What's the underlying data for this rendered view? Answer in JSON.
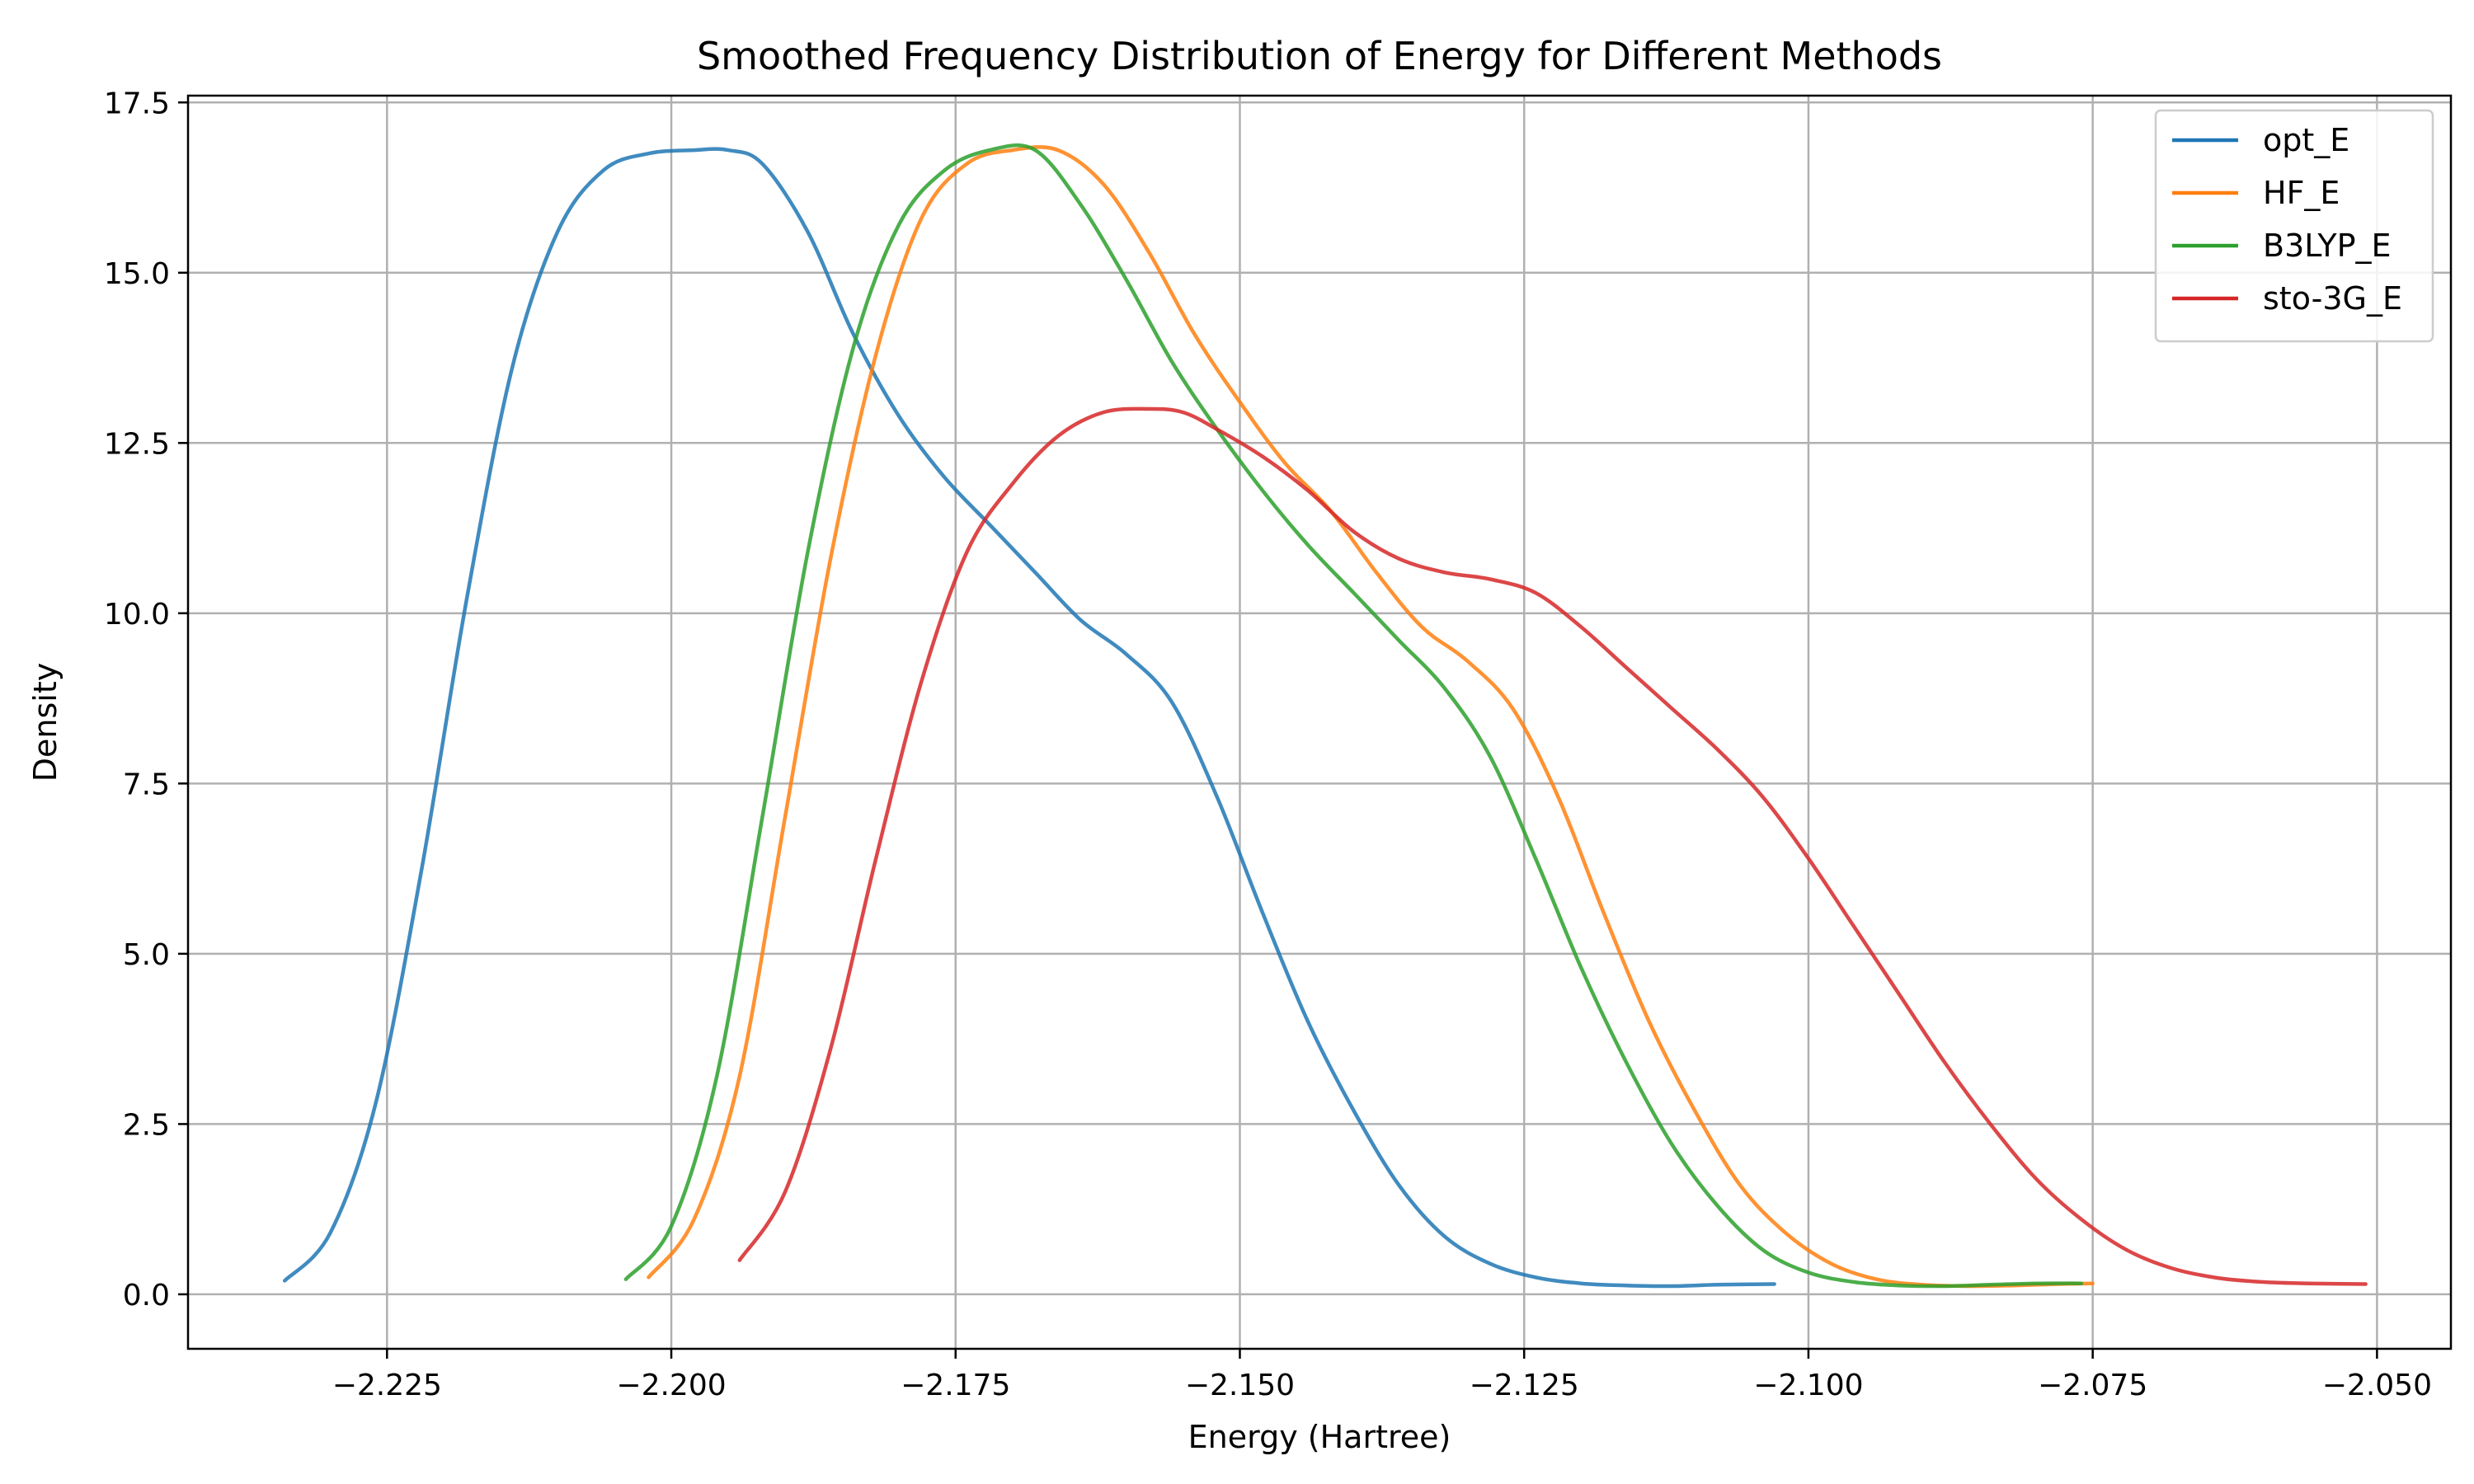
{
  "chart_data": {
    "type": "line",
    "title": "Smoothed Frequency Distribution of Energy for Different Methods",
    "xlabel": "Energy (Hartree)",
    "ylabel": "Density",
    "xlim": [
      -2.2425,
      -2.0435
    ],
    "ylim": [
      -0.8,
      17.6
    ],
    "xticks": [
      -2.225,
      -2.2,
      -2.175,
      -2.15,
      -2.125,
      -2.1,
      -2.075,
      -2.05
    ],
    "xtick_labels": [
      "−2.225",
      "−2.200",
      "−2.175",
      "−2.150",
      "−2.125",
      "−2.100",
      "−2.075",
      "−2.050"
    ],
    "yticks": [
      0,
      2.5,
      5,
      7.5,
      10,
      12.5,
      15,
      17.5
    ],
    "ytick_labels": [
      "0.0",
      "2.5",
      "5.0",
      "7.5",
      "10.0",
      "12.5",
      "15.0",
      "17.5"
    ],
    "grid": true,
    "legend_position": "top-right",
    "series": [
      {
        "name": "opt_E",
        "color": "#1f77b4",
        "x": [
          -2.234,
          -2.23,
          -2.226,
          -2.222,
          -2.218,
          -2.214,
          -2.21,
          -2.206,
          -2.202,
          -2.198,
          -2.195,
          -2.192,
          -2.188,
          -2.184,
          -2.18,
          -2.176,
          -2.172,
          -2.168,
          -2.164,
          -2.16,
          -2.156,
          -2.152,
          -2.148,
          -2.144,
          -2.14,
          -2.136,
          -2.132,
          -2.128,
          -2.124,
          -2.12,
          -2.116,
          -2.112,
          -2.108,
          -2.103
        ],
        "y": [
          0.2,
          0.9,
          2.8,
          6.2,
          10.2,
          13.6,
          15.6,
          16.5,
          16.75,
          16.8,
          16.8,
          16.6,
          15.6,
          14.1,
          12.9,
          12.0,
          11.3,
          10.6,
          9.9,
          9.4,
          8.7,
          7.3,
          5.6,
          4.0,
          2.7,
          1.6,
          0.85,
          0.45,
          0.25,
          0.16,
          0.13,
          0.12,
          0.14,
          0.15
        ]
      },
      {
        "name": "HF_E",
        "color": "#ff7f0e",
        "x": [
          -2.202,
          -2.198,
          -2.194,
          -2.19,
          -2.186,
          -2.182,
          -2.178,
          -2.174,
          -2.17,
          -2.166,
          -2.162,
          -2.158,
          -2.154,
          -2.15,
          -2.146,
          -2.142,
          -2.138,
          -2.134,
          -2.13,
          -2.126,
          -2.122,
          -2.118,
          -2.114,
          -2.11,
          -2.106,
          -2.102,
          -2.098,
          -2.094,
          -2.09,
          -2.086,
          -2.082,
          -2.078,
          -2.075
        ],
        "y": [
          0.25,
          1.1,
          3.2,
          7.0,
          10.8,
          13.8,
          15.8,
          16.6,
          16.8,
          16.8,
          16.3,
          15.3,
          14.1,
          13.1,
          12.2,
          11.5,
          10.6,
          9.8,
          9.3,
          8.6,
          7.3,
          5.6,
          4.0,
          2.7,
          1.6,
          0.9,
          0.45,
          0.22,
          0.14,
          0.12,
          0.13,
          0.15,
          0.16
        ]
      },
      {
        "name": "B3LYP_E",
        "color": "#2ca02c",
        "x": [
          -2.204,
          -2.2,
          -2.196,
          -2.192,
          -2.188,
          -2.184,
          -2.18,
          -2.176,
          -2.172,
          -2.168,
          -2.164,
          -2.16,
          -2.156,
          -2.152,
          -2.148,
          -2.144,
          -2.14,
          -2.136,
          -2.132,
          -2.128,
          -2.124,
          -2.12,
          -2.116,
          -2.112,
          -2.108,
          -2.104,
          -2.1,
          -2.096,
          -2.092,
          -2.088,
          -2.084,
          -2.08,
          -2.076
        ],
        "y": [
          0.22,
          1.0,
          3.2,
          7.0,
          10.9,
          13.9,
          15.7,
          16.5,
          16.8,
          16.8,
          16.0,
          14.9,
          13.7,
          12.7,
          11.8,
          11.0,
          10.3,
          9.6,
          8.9,
          7.9,
          6.4,
          4.8,
          3.4,
          2.2,
          1.3,
          0.65,
          0.32,
          0.18,
          0.13,
          0.12,
          0.14,
          0.16,
          0.16
        ]
      },
      {
        "name": "sto-3G_E",
        "color": "#d62728",
        "x": [
          -2.194,
          -2.19,
          -2.186,
          -2.182,
          -2.178,
          -2.174,
          -2.17,
          -2.166,
          -2.162,
          -2.158,
          -2.155,
          -2.152,
          -2.148,
          -2.144,
          -2.14,
          -2.136,
          -2.132,
          -2.128,
          -2.124,
          -2.12,
          -2.116,
          -2.112,
          -2.108,
          -2.104,
          -2.1,
          -2.096,
          -2.092,
          -2.088,
          -2.084,
          -2.08,
          -2.076,
          -2.072,
          -2.068,
          -2.064,
          -2.06,
          -2.056,
          -2.051
        ],
        "y": [
          0.5,
          1.5,
          3.6,
          6.4,
          9.0,
          10.9,
          11.9,
          12.6,
          12.95,
          13.0,
          12.95,
          12.7,
          12.3,
          11.8,
          11.2,
          10.8,
          10.6,
          10.5,
          10.3,
          9.8,
          9.2,
          8.6,
          8.0,
          7.3,
          6.4,
          5.4,
          4.4,
          3.4,
          2.5,
          1.7,
          1.1,
          0.65,
          0.38,
          0.24,
          0.18,
          0.16,
          0.15
        ]
      }
    ]
  }
}
